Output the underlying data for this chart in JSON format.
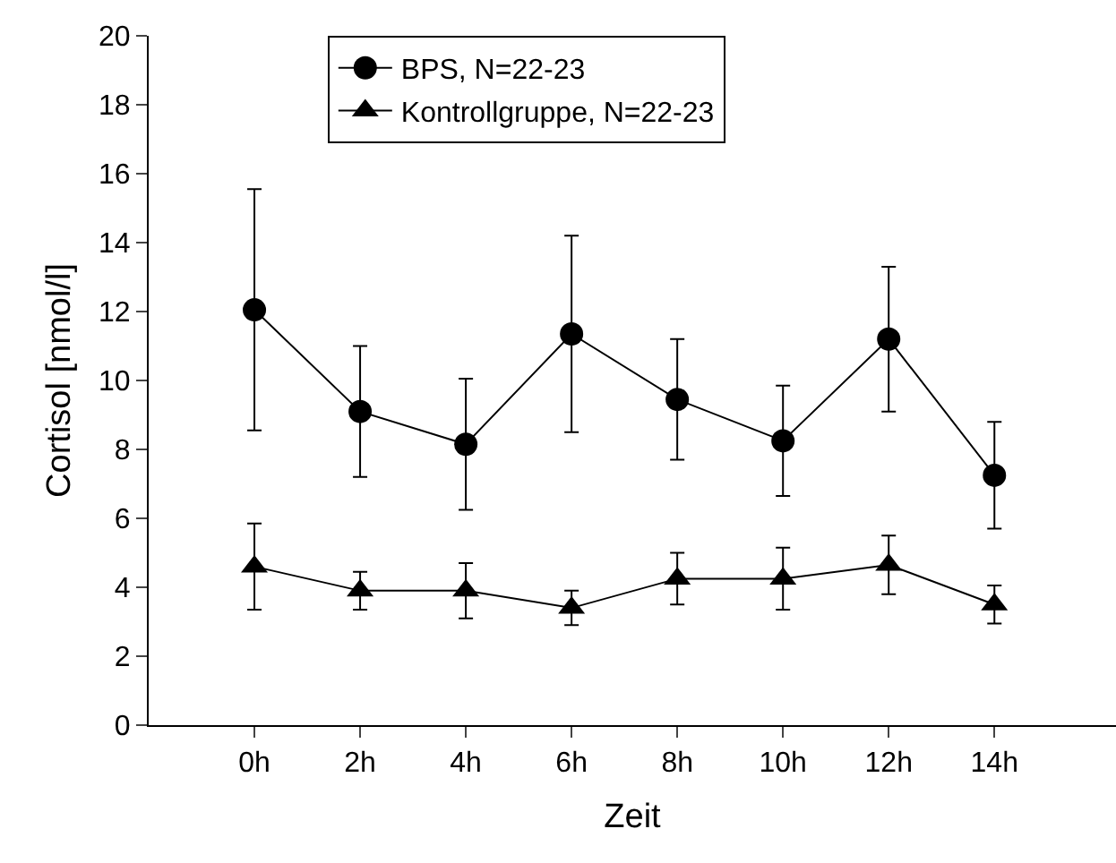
{
  "chart_data": {
    "type": "line",
    "xlabel": "Zeit",
    "ylabel": "Cortisol [nmol/l]",
    "categories": [
      "0h",
      "2h",
      "4h",
      "6h",
      "8h",
      "10h",
      "12h",
      "14h"
    ],
    "series": [
      {
        "name": "BPS, N=22-23",
        "color": "#000000",
        "marker": "circle",
        "values": [
          12.05,
          9.1,
          8.15,
          11.35,
          9.45,
          8.25,
          11.2,
          7.25
        ],
        "errors": [
          3.5,
          1.9,
          1.9,
          2.85,
          1.75,
          1.6,
          2.1,
          1.55
        ]
      },
      {
        "name": "Kontrollgruppe, N=22-23",
        "color": "#000000",
        "marker": "triangle",
        "values": [
          4.6,
          3.9,
          3.9,
          3.4,
          4.25,
          4.25,
          4.65,
          3.5
        ],
        "errors": [
          1.25,
          0.55,
          0.8,
          0.5,
          0.75,
          0.9,
          0.85,
          0.55
        ]
      }
    ],
    "ylim": [
      0,
      20
    ],
    "yticks": [
      0,
      2,
      4,
      6,
      8,
      10,
      12,
      14,
      16,
      18,
      20
    ],
    "legend": "top",
    "line_style": "solid"
  }
}
